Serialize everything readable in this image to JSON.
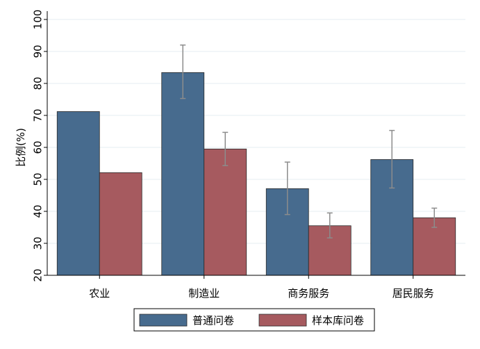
{
  "chart_data": {
    "type": "bar",
    "title": "",
    "xlabel": "",
    "ylabel": "比例(%)",
    "ylim": [
      20,
      100
    ],
    "yticks": [
      20,
      30,
      40,
      50,
      60,
      70,
      80,
      90,
      100
    ],
    "grid": true,
    "legend_position": "bottom",
    "categories": [
      "农业",
      "制造业",
      "商务服务",
      "居民服务"
    ],
    "series": [
      {
        "name": "普通问卷",
        "color": "#476b8e",
        "values": [
          71.2,
          83.4,
          47.1,
          56.2
        ],
        "error_low": [
          null,
          75.3,
          39.0,
          47.3
        ],
        "error_high": [
          null,
          92.0,
          55.4,
          65.3
        ]
      },
      {
        "name": "样本库问卷",
        "color": "#a65a5f",
        "values": [
          52.1,
          59.5,
          35.5,
          38.0
        ],
        "error_low": [
          null,
          54.3,
          31.7,
          35.0
        ],
        "error_high": [
          null,
          64.7,
          39.5,
          41.0
        ]
      }
    ]
  }
}
